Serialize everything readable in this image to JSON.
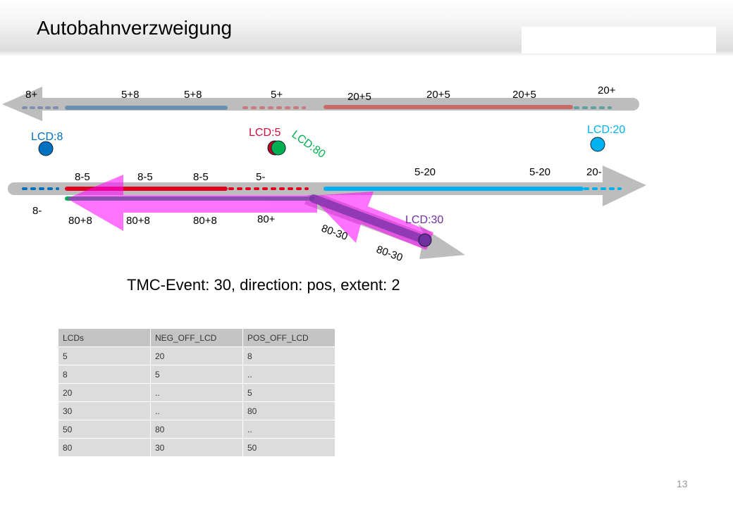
{
  "slide": {
    "title": "Autobahnverzweigung",
    "page_number": "13"
  },
  "diagram": {
    "top_road_labels": [
      "8+",
      "5+8",
      "5+8",
      "5+",
      "20+5",
      "20+5",
      "20+5",
      "20+"
    ],
    "bottom_road_labels_above": [
      "8-5",
      "8-5",
      "8-5",
      "5-",
      "5-20",
      "5-20",
      "20-"
    ],
    "bottom_road_labels_below": [
      "8-",
      "80+8",
      "80+8",
      "80+8",
      "80+"
    ],
    "ramp_labels": [
      "80-30",
      "80-30"
    ],
    "lcd_points": [
      {
        "label": "LCD:8",
        "color": "#0070c0"
      },
      {
        "label": "LCD:5",
        "color": "#d0103a"
      },
      {
        "label": "LCD:80",
        "color": "#00b050"
      },
      {
        "label": "LCD:20",
        "color": "#00b0f0"
      },
      {
        "label": "LCD:30",
        "color": "#7030a0"
      }
    ],
    "event_caption": "TMC-Event: 30, direction: pos, extent: 2",
    "highlight_color": "#ff00ff"
  },
  "table": {
    "headers": [
      "LCDs",
      "NEG_OFF_LCD",
      "POS_OFF_LCD"
    ],
    "rows": [
      [
        "5",
        "20",
        "8"
      ],
      [
        "8",
        "5",
        ".."
      ],
      [
        "20",
        "..",
        "5"
      ],
      [
        "30",
        "..",
        "80"
      ],
      [
        "50",
        "80",
        ".."
      ],
      [
        "80",
        "30",
        "50"
      ]
    ]
  }
}
